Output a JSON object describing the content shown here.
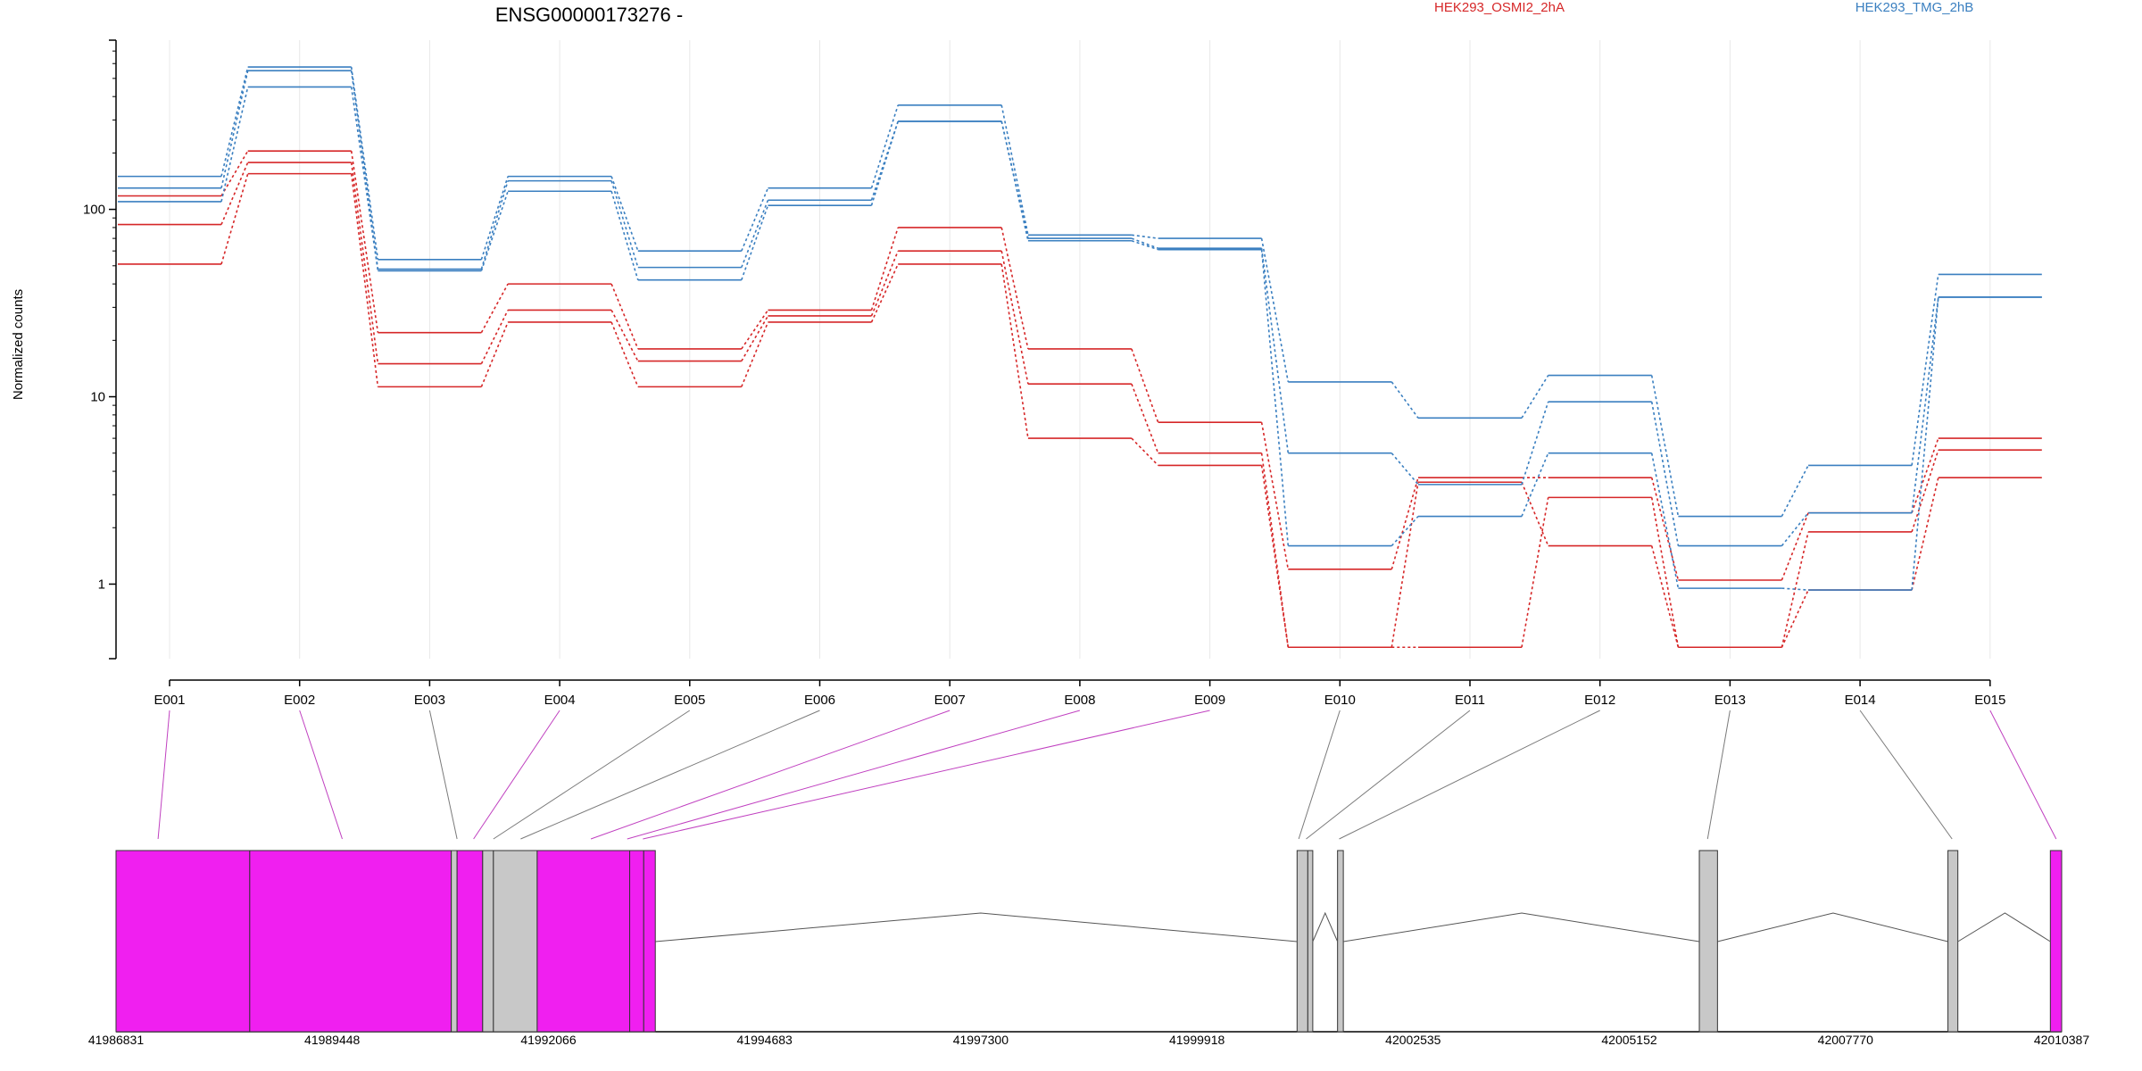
{
  "title": "ENSG00000173276 -",
  "legend": [
    {
      "name": "HEK293_OSMI2_2hA",
      "color": "#d62728"
    },
    {
      "name": "HEK293_TMG_2hB",
      "color": "#3a7fc0"
    }
  ],
  "colors": {
    "highlight_exon": "#f01ff0",
    "other_exon": "#c8c8c8",
    "connector_gray": "#7a7a7a",
    "connector_magenta": "#c040c0"
  },
  "chart_data": {
    "type": "line",
    "ylabel": "Normalized counts",
    "yscale": "log",
    "y_ticks": [
      1,
      10,
      100
    ],
    "y_tick_labels": [
      "1",
      "10",
      "100"
    ],
    "ylim": [
      0.4,
      800
    ],
    "grid": "vertical",
    "legend_position": "top",
    "categories": [
      "E001",
      "E002",
      "E003",
      "E004",
      "E005",
      "E006",
      "E007",
      "E008",
      "E009",
      "E010",
      "E011",
      "E012",
      "E013",
      "E014",
      "E015"
    ],
    "series": [
      {
        "name": "HEK293_OSMI2_2hA",
        "group": "red",
        "values": [
          118,
          205,
          22,
          40,
          18,
          29,
          80,
          18,
          7.3,
          1.2,
          3.7,
          3.7,
          1.05,
          2.4,
          6
        ]
      },
      {
        "group": "red",
        "values": [
          83,
          178,
          15,
          29,
          15.5,
          27,
          60,
          11.7,
          5.0,
          0.46,
          0.46,
          2.9,
          0.46,
          1.9,
          5.2
        ]
      },
      {
        "group": "red",
        "values": [
          51,
          155,
          11.3,
          25,
          11.3,
          25,
          51,
          6.0,
          4.3,
          0.46,
          3.5,
          1.6,
          0.46,
          0.93,
          3.7
        ]
      },
      {
        "name": "HEK293_TMG_2hB",
        "group": "blue",
        "values": [
          150,
          575,
          54,
          150,
          60,
          130,
          360,
          73,
          70,
          12,
          7.7,
          13,
          2.3,
          4.3,
          45
        ]
      },
      {
        "group": "blue",
        "values": [
          130,
          550,
          48,
          142,
          49,
          112,
          295,
          70,
          62,
          5.0,
          3.4,
          9.4,
          1.6,
          2.4,
          34
        ]
      },
      {
        "group": "blue",
        "values": [
          110,
          450,
          47,
          125,
          42,
          105,
          295,
          68,
          61,
          1.6,
          2.3,
          5.0,
          0.95,
          0.93,
          34
        ]
      }
    ],
    "highlighted_exons": [
      "E001",
      "E002",
      "E004",
      "E007",
      "E008",
      "E009",
      "E015"
    ]
  },
  "gene_model": {
    "coord_ticks": [
      "41986831",
      "41989448",
      "41992066",
      "41994683",
      "41997300",
      "41999918",
      "42002535",
      "42005152",
      "42007770",
      "42010387"
    ],
    "start": 41986831,
    "end": 42010387
  }
}
